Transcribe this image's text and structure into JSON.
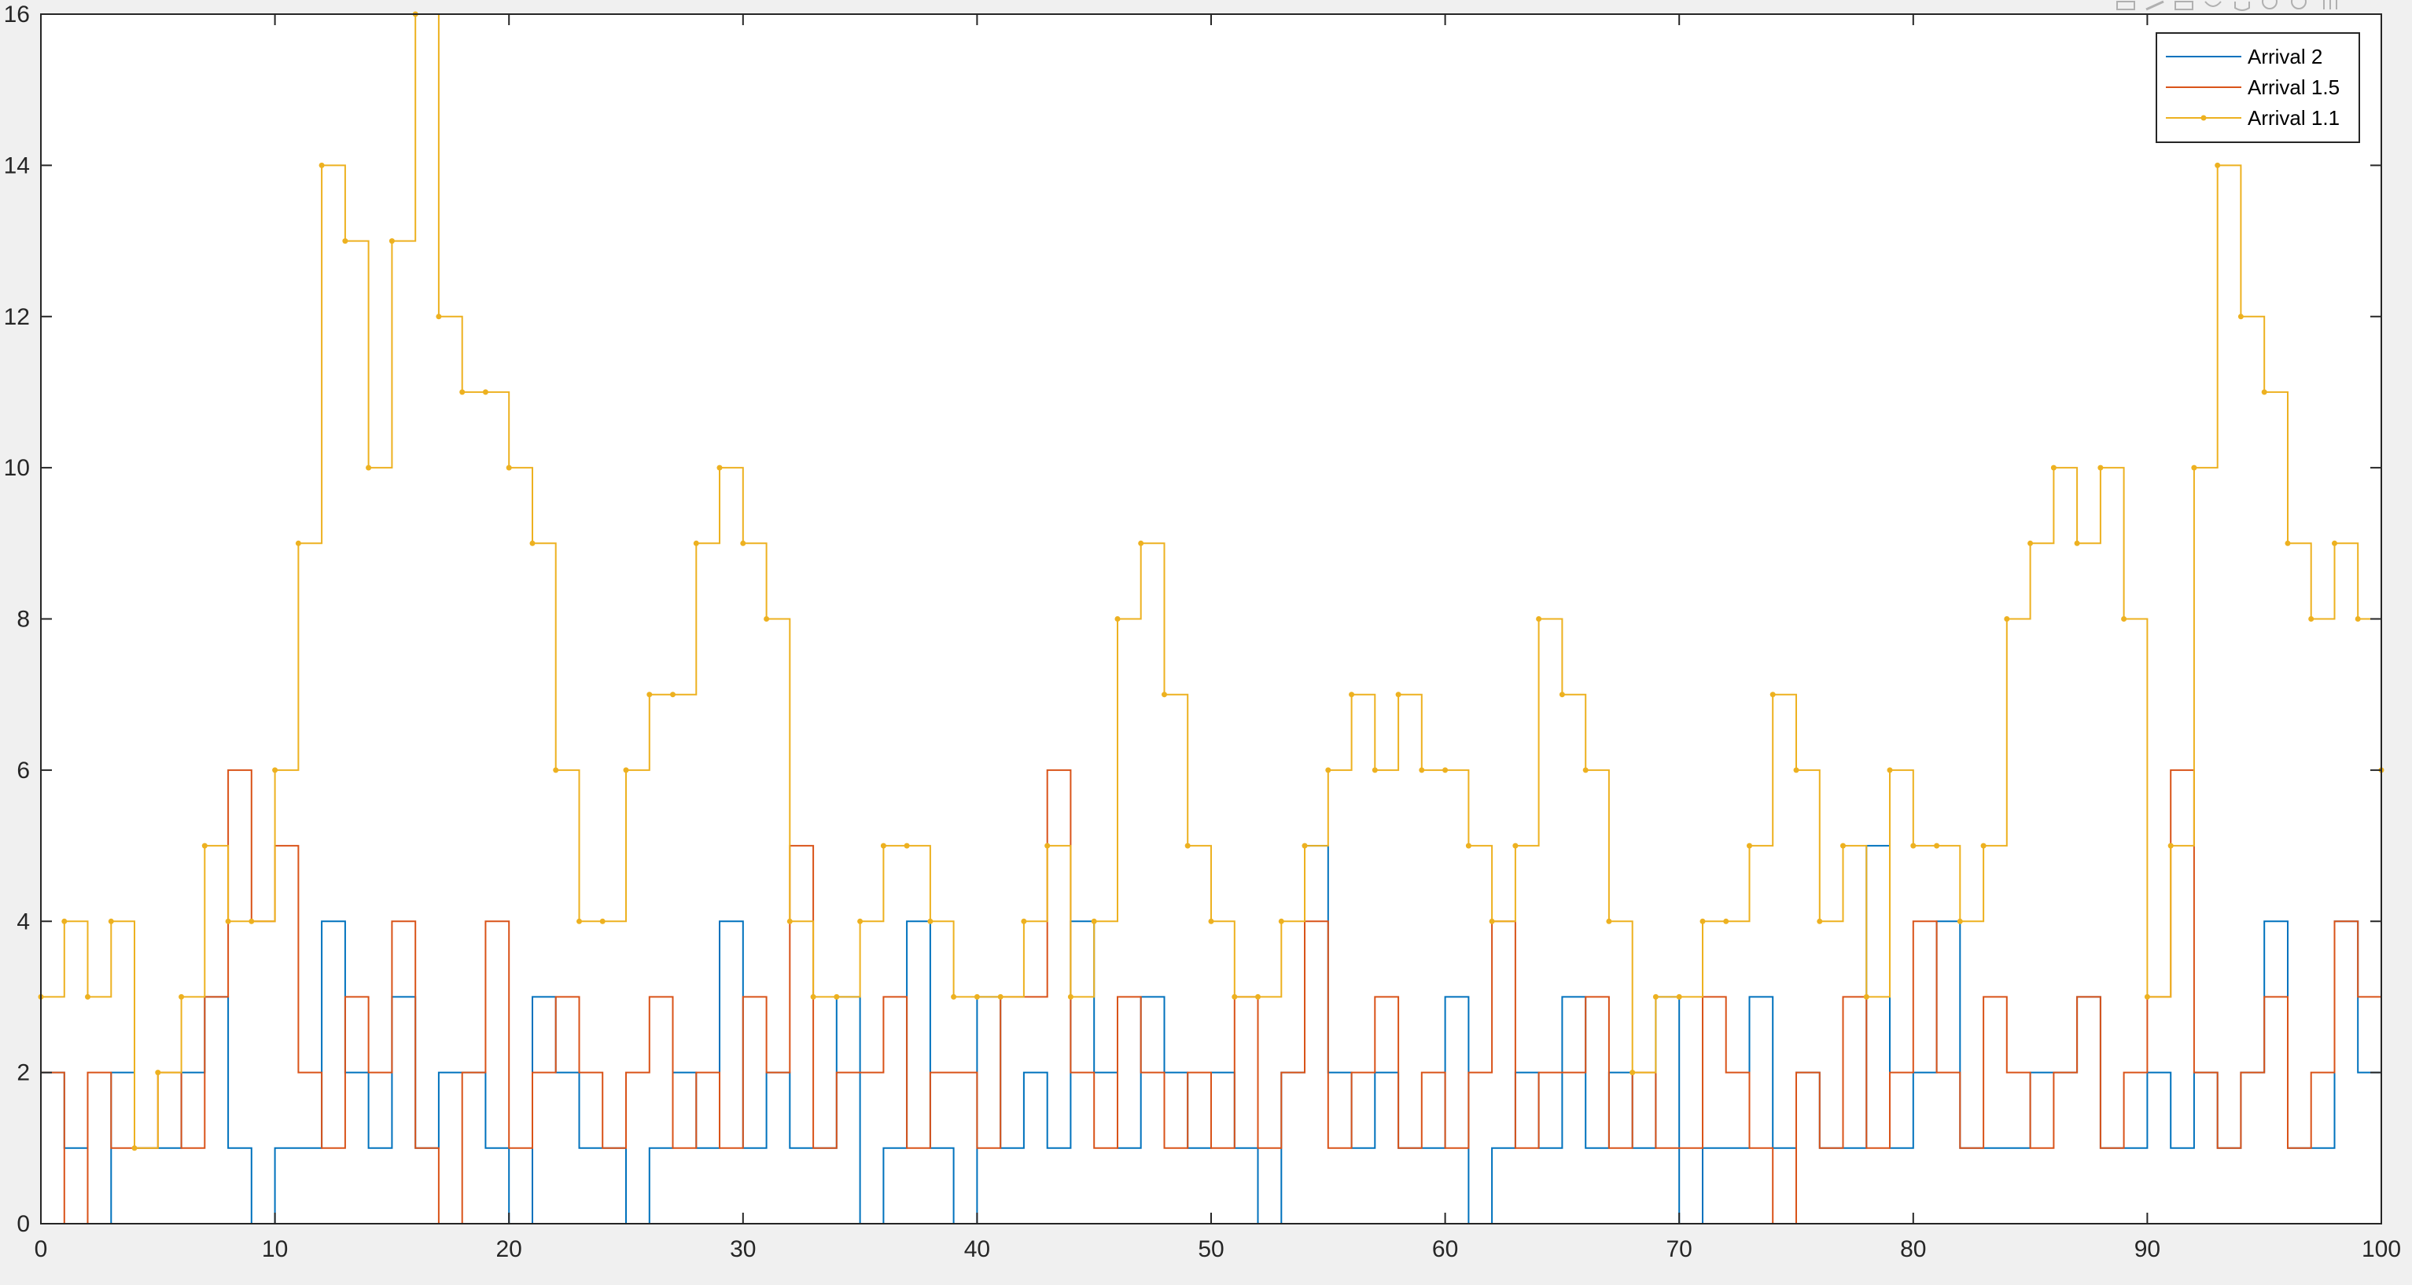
{
  "toolbar": {
    "icons": [
      "export-icon",
      "brush-icon",
      "data-tips-icon",
      "rotate-icon",
      "pan-icon",
      "zoom-in-icon",
      "zoom-out-icon",
      "restore-view-icon"
    ]
  },
  "chart_data": {
    "type": "line",
    "title": "",
    "xlabel": "",
    "ylabel": "",
    "xlim": [
      0,
      100
    ],
    "ylim": [
      0,
      16
    ],
    "xticks": [
      0,
      10,
      20,
      30,
      40,
      50,
      60,
      70,
      80,
      90,
      100
    ],
    "yticks": [
      0,
      2,
      4,
      6,
      8,
      10,
      12,
      14,
      16
    ],
    "grid": false,
    "legend_location": "top-right",
    "series": [
      {
        "name": "Arrival 2",
        "color": "#0072BD",
        "marker": "none",
        "x": [
          0,
          1,
          2,
          3,
          4,
          5,
          6,
          7,
          8,
          9,
          10,
          11,
          12,
          13,
          14,
          15,
          16,
          17,
          18,
          19,
          20,
          21,
          22,
          23,
          24,
          25,
          26,
          27,
          28,
          29,
          30,
          31,
          32,
          33,
          34,
          35,
          36,
          37,
          38,
          39,
          40,
          41,
          42,
          43,
          44,
          45,
          46,
          47,
          48,
          49,
          50,
          51,
          52,
          53,
          54,
          55,
          56,
          57,
          58,
          59,
          60,
          61,
          62,
          63,
          64,
          65,
          66,
          67,
          68,
          69,
          70,
          71,
          72,
          73,
          74,
          75,
          76,
          77,
          78,
          79,
          80,
          81,
          82,
          83,
          84,
          85,
          86,
          87,
          88,
          89,
          90,
          91,
          92,
          93,
          94,
          95,
          96,
          97,
          98,
          99,
          100
        ],
        "y": [
          2,
          1,
          0,
          2,
          1,
          1,
          2,
          3,
          1,
          0,
          1,
          1,
          4,
          2,
          1,
          3,
          1,
          2,
          2,
          1,
          0,
          3,
          2,
          1,
          1,
          0,
          1,
          2,
          1,
          4,
          1,
          2,
          1,
          1,
          3,
          0,
          1,
          4,
          1,
          0,
          3,
          1,
          2,
          1,
          4,
          2,
          1,
          3,
          2,
          1,
          2,
          1,
          0,
          2,
          5,
          2,
          1,
          2,
          1,
          1,
          3,
          0,
          1,
          2,
          1,
          3,
          1,
          2,
          1,
          3,
          0,
          1,
          1,
          3,
          1,
          2,
          1,
          1,
          5,
          1,
          2,
          4,
          1,
          1,
          1,
          2,
          2,
          3,
          1,
          1,
          2,
          1,
          2,
          1,
          2,
          4,
          1,
          1,
          4,
          2,
          4
        ]
      },
      {
        "name": "Arrival 1.5",
        "color": "#D95319",
        "marker": "none",
        "x": [
          0,
          1,
          2,
          3,
          4,
          5,
          6,
          7,
          8,
          9,
          10,
          11,
          12,
          13,
          14,
          15,
          16,
          17,
          18,
          19,
          20,
          21,
          22,
          23,
          24,
          25,
          26,
          27,
          28,
          29,
          30,
          31,
          32,
          33,
          34,
          35,
          36,
          37,
          38,
          39,
          40,
          41,
          42,
          43,
          44,
          45,
          46,
          47,
          48,
          49,
          50,
          51,
          52,
          53,
          54,
          55,
          56,
          57,
          58,
          59,
          60,
          61,
          62,
          63,
          64,
          65,
          66,
          67,
          68,
          69,
          70,
          71,
          72,
          73,
          74,
          75,
          76,
          77,
          78,
          79,
          80,
          81,
          82,
          83,
          84,
          85,
          86,
          87,
          88,
          89,
          90,
          91,
          92,
          93,
          94,
          95,
          96,
          97,
          98,
          99,
          100
        ],
        "y": [
          2,
          0,
          2,
          1,
          1,
          2,
          1,
          3,
          6,
          4,
          5,
          2,
          1,
          3,
          2,
          4,
          1,
          0,
          2,
          4,
          1,
          2,
          3,
          2,
          1,
          2,
          3,
          1,
          2,
          1,
          3,
          2,
          5,
          1,
          2,
          2,
          3,
          1,
          2,
          2,
          1,
          3,
          3,
          6,
          2,
          1,
          3,
          2,
          1,
          2,
          1,
          3,
          1,
          2,
          4,
          1,
          2,
          3,
          1,
          2,
          1,
          2,
          4,
          1,
          2,
          2,
          3,
          1,
          2,
          1,
          1,
          3,
          2,
          1,
          0,
          2,
          1,
          3,
          1,
          2,
          4,
          2,
          1,
          3,
          2,
          1,
          2,
          3,
          1,
          2,
          3,
          6,
          2,
          1,
          2,
          3,
          1,
          2,
          4,
          3,
          5
        ]
      },
      {
        "name": "Arrival 1.1",
        "color": "#EDB120",
        "marker": "dot",
        "x": [
          0,
          1,
          2,
          3,
          4,
          5,
          6,
          7,
          8,
          9,
          10,
          11,
          12,
          13,
          14,
          15,
          16,
          17,
          18,
          19,
          20,
          21,
          22,
          23,
          24,
          25,
          26,
          27,
          28,
          29,
          30,
          31,
          32,
          33,
          34,
          35,
          36,
          37,
          38,
          39,
          40,
          41,
          42,
          43,
          44,
          45,
          46,
          47,
          48,
          49,
          50,
          51,
          52,
          53,
          54,
          55,
          56,
          57,
          58,
          59,
          60,
          61,
          62,
          63,
          64,
          65,
          66,
          67,
          68,
          69,
          70,
          71,
          72,
          73,
          74,
          75,
          76,
          77,
          78,
          79,
          80,
          81,
          82,
          83,
          84,
          85,
          86,
          87,
          88,
          89,
          90,
          91,
          92,
          93,
          94,
          95,
          96,
          97,
          98,
          99,
          100
        ],
        "y": [
          3,
          4,
          3,
          4,
          1,
          2,
          3,
          5,
          4,
          4,
          6,
          9,
          14,
          13,
          10,
          13,
          16,
          12,
          11,
          11,
          10,
          9,
          6,
          4,
          4,
          6,
          7,
          7,
          9,
          10,
          9,
          8,
          4,
          3,
          3,
          4,
          5,
          5,
          4,
          3,
          3,
          3,
          4,
          5,
          3,
          4,
          8,
          9,
          7,
          5,
          4,
          3,
          3,
          4,
          5,
          6,
          7,
          6,
          7,
          6,
          6,
          5,
          4,
          5,
          8,
          7,
          6,
          4,
          2,
          3,
          3,
          4,
          4,
          5,
          7,
          6,
          4,
          5,
          3,
          6,
          5,
          5,
          4,
          5,
          8,
          9,
          10,
          9,
          10,
          8,
          3,
          5,
          10,
          14,
          12,
          11,
          9,
          8,
          9,
          8,
          6
        ]
      }
    ]
  }
}
